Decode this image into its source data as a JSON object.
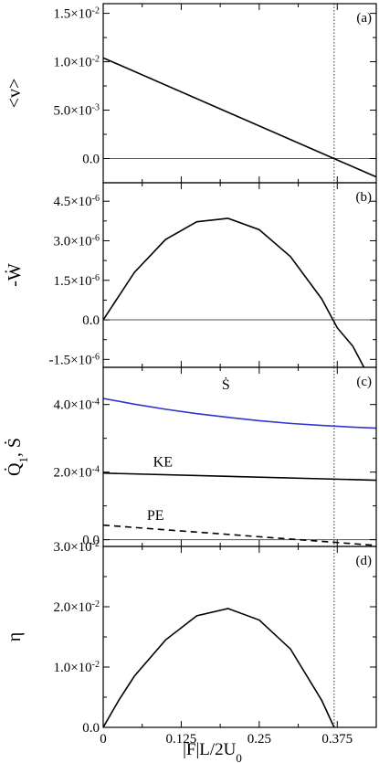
{
  "chart_data": {
    "type": "line",
    "shared_x": {
      "label": "|F|L/2U",
      "label_sub": "0",
      "xlim": [
        0,
        0.4375
      ],
      "ticks": [
        0,
        0.125,
        0.25,
        0.375
      ],
      "tick_labels": [
        "0",
        "0.125",
        "0.25",
        "0.375"
      ],
      "reference_line": 0.37
    },
    "panels": [
      {
        "panel_label": "(a)",
        "ylabel": "<v>",
        "ylim": [
          -0.0025,
          0.016
        ],
        "yticks": [
          0,
          0.005,
          0.01,
          0.015
        ],
        "ytick_labels": [
          {
            "mant": "0.0",
            "exp": ""
          },
          {
            "mant": "5.0×10",
            "exp": "-3"
          },
          {
            "mant": "1.0×10",
            "exp": "-2"
          },
          {
            "mant": "1.5×10",
            "exp": "-2"
          }
        ],
        "zero_line": true,
        "series": [
          {
            "color": "#000000",
            "dash": "none",
            "x": [
              0,
              0.4375
            ],
            "y": [
              0.0104,
              -0.0019
            ]
          }
        ],
        "annotations": []
      },
      {
        "panel_label": "(b)",
        "ylabel": "-Ẇ",
        "ylim": [
          -1.8e-06,
          5.2e-06
        ],
        "yticks": [
          -1.5e-06,
          0,
          1.5e-06,
          3e-06,
          4.5e-06
        ],
        "ytick_labels": [
          {
            "mant": "-1.5×10",
            "exp": "-6"
          },
          {
            "mant": "0.0",
            "exp": ""
          },
          {
            "mant": "1.5×10",
            "exp": "-6"
          },
          {
            "mant": "3.0×10",
            "exp": "-6"
          },
          {
            "mant": "4.5×10",
            "exp": "-6"
          }
        ],
        "zero_line": true,
        "series": [
          {
            "color": "#000000",
            "dash": "none",
            "x": [
              0,
              0.05,
              0.1,
              0.15,
              0.2,
              0.25,
              0.3,
              0.35,
              0.375,
              0.4,
              0.42
            ],
            "y": [
              0,
              1.8e-06,
              3.05e-06,
              3.72e-06,
              3.85e-06,
              3.42e-06,
              2.4e-06,
              8e-07,
              -3e-07,
              -1e-06,
              -1.9e-06
            ]
          }
        ],
        "annotations": []
      },
      {
        "panel_label": "(c)",
        "ylabel": "Q̇",
        "ylabel_sub": "1",
        "ylabel_tail": ", Ṡ",
        "ylim": [
          -2e-05,
          0.00051
        ],
        "yticks": [
          0,
          0.0002,
          0.0004
        ],
        "ytick_labels": [
          {
            "mant": "0.0",
            "exp": ""
          },
          {
            "mant": "2.0×10",
            "exp": "-4"
          },
          {
            "mant": "4.0×10",
            "exp": "-4"
          }
        ],
        "zero_line": true,
        "series": [
          {
            "color": "#3333cc",
            "dash": "none",
            "x": [
              0,
              0.05,
              0.1,
              0.15,
              0.2,
              0.25,
              0.3,
              0.35,
              0.4,
              0.4375
            ],
            "y": [
              0.000418,
              0.000401,
              0.000386,
              0.000373,
              0.000362,
              0.000352,
              0.000344,
              0.000338,
              0.000333,
              0.00033
            ]
          },
          {
            "color": "#000000",
            "dash": "none",
            "x": [
              0,
              0.4375
            ],
            "y": [
              0.000197,
              0.000176
            ]
          },
          {
            "color": "#000000",
            "dash": "7,5",
            "x": [
              0,
              0.4375
            ],
            "y": [
              4.3e-05,
              -1.7e-05
            ]
          }
        ],
        "annotations": [
          {
            "text": "Ṡ",
            "x": 0.19,
            "y": 0.000445
          },
          {
            "text": "KE",
            "x": 0.08,
            "y": 0.000216
          },
          {
            "text": "PE",
            "x": 0.07,
            "y": 5.8e-05
          }
        ]
      },
      {
        "panel_label": "(d)",
        "ylabel": "η",
        "ylim": [
          0,
          0.03
        ],
        "yticks": [
          0,
          0.01,
          0.02,
          0.03
        ],
        "ytick_labels": [
          {
            "mant": "0.0",
            "exp": ""
          },
          {
            "mant": "1.0×10",
            "exp": "-2"
          },
          {
            "mant": "2.0×10",
            "exp": "-2"
          },
          {
            "mant": "3.0×10",
            "exp": "-2"
          }
        ],
        "zero_line": false,
        "series": [
          {
            "color": "#000000",
            "dash": "none",
            "x": [
              0,
              0.025,
              0.05,
              0.1,
              0.15,
              0.2,
              0.25,
              0.3,
              0.35,
              0.37
            ],
            "y": [
              0,
              0.0045,
              0.0085,
              0.0145,
              0.0185,
              0.0197,
              0.0178,
              0.013,
              0.0045,
              0
            ]
          }
        ],
        "annotations": []
      }
    ]
  }
}
